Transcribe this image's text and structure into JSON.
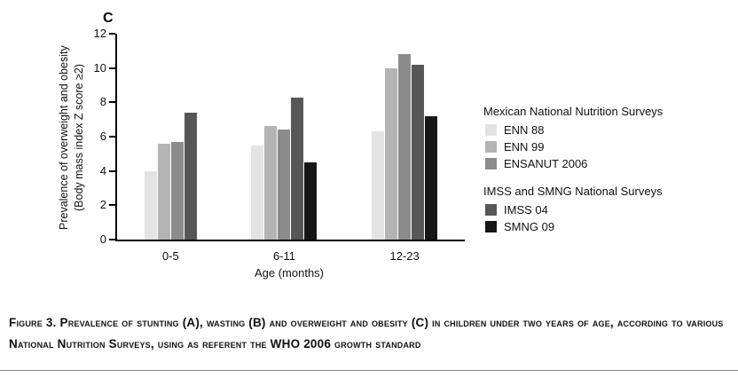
{
  "panel_label": "C",
  "chart_data": {
    "type": "bar",
    "title": "",
    "categories": [
      "0-5",
      "6-11",
      "12-23"
    ],
    "xlabel": "Age (months)",
    "ylabel_line1": "Prevalence of overweight and obesity",
    "ylabel_line2": "(Body mass index Z score ≥2)",
    "ylim": [
      0,
      12
    ],
    "ytick_step": 2,
    "grid": false,
    "legend_position": "right",
    "series": [
      {
        "name": "ENN 88",
        "color": "#e3e3e3",
        "values": [
          4.0,
          5.5,
          6.3
        ]
      },
      {
        "name": "ENN 99",
        "color": "#b4b4b4",
        "values": [
          5.6,
          6.6,
          10.0
        ]
      },
      {
        "name": "ENSANUT 2006",
        "color": "#8b8b8b",
        "values": [
          5.7,
          6.4,
          10.8
        ]
      },
      {
        "name": "IMSS 04",
        "color": "#575757",
        "values": [
          7.4,
          8.3,
          10.2
        ]
      },
      {
        "name": "SMNG 09",
        "color": "#161616",
        "values": [
          null,
          4.5,
          7.2
        ]
      }
    ],
    "legend_groups": [
      {
        "title": "Mexican National Nutrition Surveys",
        "items": [
          "ENN 88",
          "ENN 99",
          "ENSANUT 2006"
        ]
      },
      {
        "title": "IMSS and SMNG National Surveys",
        "items": [
          "IMSS 04",
          "SMNG 09"
        ]
      }
    ]
  },
  "caption": {
    "text": "Figure 3. Prevalence of stunting (A), wasting (B) and overweight and obesity (C) in children under two years of age, according to various National Nutrition Surveys, using as referent the WHO 2006 growth standard"
  }
}
